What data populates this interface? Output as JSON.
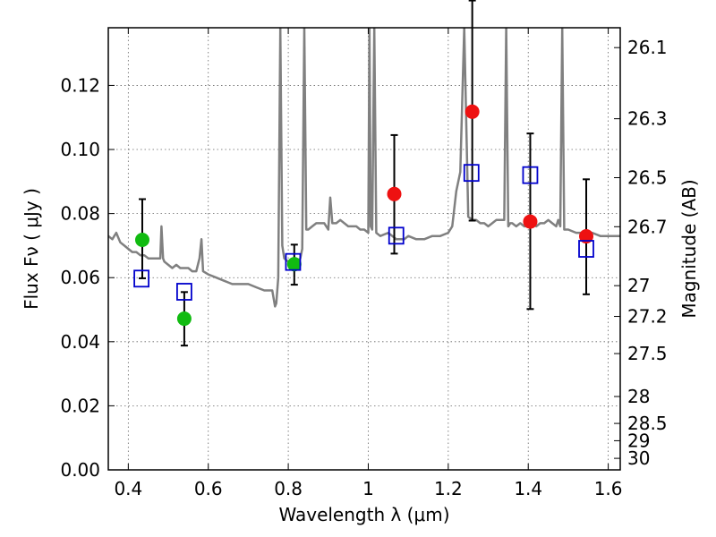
{
  "chart_data": {
    "type": "scatter",
    "xlabel": "Wavelength  λ (μm)",
    "ylabel": "Flux  Fν  ( μJy )",
    "y2label": "Magnitude (AB)",
    "xlim": [
      0.35,
      1.63
    ],
    "ylim": [
      0.0,
      0.138
    ],
    "grid": true,
    "x_ticks": [
      "0.4",
      "0.6",
      "0.8",
      "1",
      "1.2",
      "1.4",
      "1.6"
    ],
    "x_tick_values": [
      0.4,
      0.6,
      0.8,
      1.0,
      1.2,
      1.4,
      1.6
    ],
    "y_ticks": [
      "0.00",
      "0.02",
      "0.04",
      "0.06",
      "0.08",
      "0.10",
      "0.12"
    ],
    "y_tick_values": [
      0.0,
      0.02,
      0.04,
      0.06,
      0.08,
      0.1,
      0.12
    ],
    "magnitude_ticks": [
      {
        "label": "26.1",
        "value": 0.1318
      },
      {
        "label": "26.3",
        "value": 0.1096
      },
      {
        "label": "26.5",
        "value": 0.0912
      },
      {
        "label": "26.7",
        "value": 0.0759
      },
      {
        "label": "27",
        "value": 0.0575
      },
      {
        "label": "27.2",
        "value": 0.0479
      },
      {
        "label": "27.5",
        "value": 0.0363
      },
      {
        "label": "28",
        "value": 0.0229
      },
      {
        "label": "28.5",
        "value": 0.0145
      },
      {
        "label": "29",
        "value": 0.0091
      },
      {
        "label": "30",
        "value": 0.0036
      }
    ],
    "colors": {
      "green": "#11bb11",
      "red": "#ee1111",
      "blue": "#0000cc",
      "model": "#808080",
      "grid": "#666666"
    },
    "series": [
      {
        "marker": "circle",
        "color": "green",
        "points": [
          {
            "x": 0.435,
            "y": 0.0718,
            "err_low": 0.0598,
            "err_high": 0.0845
          },
          {
            "x": 0.54,
            "y": 0.0472,
            "err_low": 0.0388,
            "err_high": 0.0555
          },
          {
            "x": 0.815,
            "y": 0.0642,
            "err_low": 0.0578,
            "err_high": 0.0703
          }
        ]
      },
      {
        "marker": "circle",
        "color": "red",
        "points": [
          {
            "x": 1.065,
            "y": 0.0861,
            "err_low": 0.0675,
            "err_high": 0.1045
          },
          {
            "x": 1.26,
            "y": 0.1118,
            "err_low": 0.0778,
            "err_high": 0.1465
          },
          {
            "x": 1.405,
            "y": 0.0775,
            "err_low": 0.0502,
            "err_high": 0.105
          },
          {
            "x": 1.545,
            "y": 0.0729,
            "err_low": 0.0548,
            "err_high": 0.0907
          }
        ]
      },
      {
        "marker": "open-square",
        "color": "blue",
        "points": [
          {
            "x": 0.433,
            "y": 0.0597
          },
          {
            "x": 0.54,
            "y": 0.0556
          },
          {
            "x": 0.812,
            "y": 0.0649
          },
          {
            "x": 1.07,
            "y": 0.0731
          },
          {
            "x": 1.258,
            "y": 0.0927
          },
          {
            "x": 1.405,
            "y": 0.092
          },
          {
            "x": 1.545,
            "y": 0.069
          }
        ]
      }
    ],
    "model_spectrum": {
      "x": [
        0.35,
        0.36,
        0.37,
        0.38,
        0.39,
        0.4,
        0.41,
        0.42,
        0.43,
        0.44,
        0.45,
        0.46,
        0.47,
        0.48,
        0.483,
        0.487,
        0.49,
        0.5,
        0.51,
        0.52,
        0.53,
        0.54,
        0.55,
        0.56,
        0.57,
        0.578,
        0.583,
        0.587,
        0.6,
        0.62,
        0.64,
        0.66,
        0.68,
        0.7,
        0.72,
        0.74,
        0.76,
        0.767,
        0.77,
        0.775,
        0.78,
        0.785,
        0.79,
        0.8,
        0.81,
        0.82,
        0.83,
        0.835,
        0.84,
        0.845,
        0.85,
        0.86,
        0.87,
        0.88,
        0.89,
        0.9,
        0.905,
        0.91,
        0.92,
        0.93,
        0.94,
        0.95,
        0.96,
        0.97,
        0.98,
        0.99,
        1.0,
        1.003,
        1.006,
        1.01,
        1.015,
        1.02,
        1.03,
        1.05,
        1.07,
        1.09,
        1.1,
        1.12,
        1.14,
        1.16,
        1.18,
        1.2,
        1.21,
        1.22,
        1.23,
        1.24,
        1.25,
        1.26,
        1.27,
        1.28,
        1.29,
        1.3,
        1.31,
        1.32,
        1.33,
        1.34,
        1.345,
        1.35,
        1.355,
        1.36,
        1.37,
        1.38,
        1.39,
        1.4,
        1.41,
        1.42,
        1.43,
        1.44,
        1.45,
        1.46,
        1.47,
        1.475,
        1.48,
        1.485,
        1.49,
        1.5,
        1.52,
        1.54,
        1.56,
        1.58,
        1.6,
        1.63
      ],
      "y": [
        0.073,
        0.072,
        0.074,
        0.071,
        0.07,
        0.069,
        0.068,
        0.068,
        0.067,
        0.067,
        0.066,
        0.066,
        0.066,
        0.066,
        0.076,
        0.066,
        0.065,
        0.064,
        0.063,
        0.064,
        0.063,
        0.063,
        0.063,
        0.062,
        0.062,
        0.066,
        0.072,
        0.062,
        0.061,
        0.06,
        0.059,
        0.058,
        0.058,
        0.058,
        0.057,
        0.056,
        0.056,
        0.051,
        0.052,
        0.06,
        0.138,
        0.07,
        0.066,
        0.065,
        0.065,
        0.065,
        0.066,
        0.069,
        0.138,
        0.075,
        0.075,
        0.076,
        0.077,
        0.077,
        0.077,
        0.075,
        0.085,
        0.077,
        0.077,
        0.078,
        0.077,
        0.076,
        0.076,
        0.076,
        0.075,
        0.075,
        0.074,
        0.138,
        0.076,
        0.075,
        0.138,
        0.074,
        0.073,
        0.074,
        0.072,
        0.072,
        0.073,
        0.072,
        0.072,
        0.073,
        0.073,
        0.074,
        0.076,
        0.087,
        0.093,
        0.138,
        0.079,
        0.078,
        0.078,
        0.077,
        0.077,
        0.076,
        0.077,
        0.078,
        0.078,
        0.078,
        0.138,
        0.076,
        0.077,
        0.077,
        0.076,
        0.077,
        0.076,
        0.076,
        0.077,
        0.076,
        0.077,
        0.077,
        0.078,
        0.077,
        0.076,
        0.078,
        0.076,
        0.138,
        0.075,
        0.075,
        0.074,
        0.074,
        0.074,
        0.073,
        0.073,
        0.073
      ]
    }
  }
}
